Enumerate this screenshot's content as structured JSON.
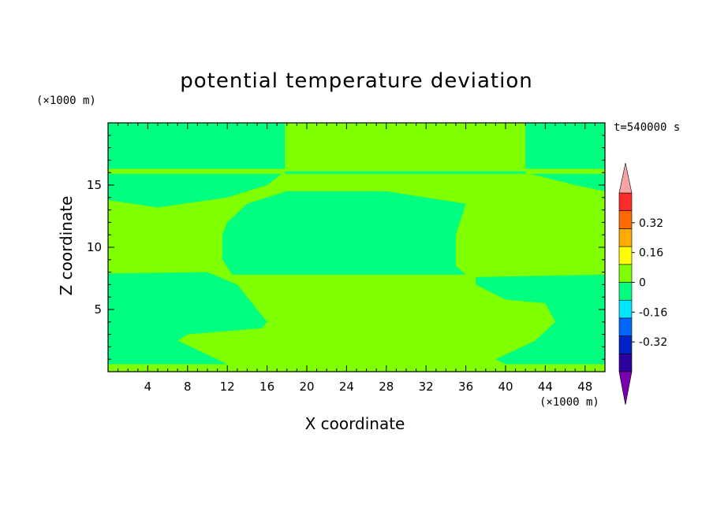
{
  "chart_data": {
    "type": "heatmap",
    "title": "potential temperature deviation",
    "xlabel": "X coordinate",
    "ylabel": "Z coordinate",
    "x_unit": "(×1000 m)",
    "y_unit": "(×1000 m)",
    "time_label": "t=540000 s",
    "xlim": [
      0,
      50
    ],
    "ylim": [
      0,
      20
    ],
    "x_ticks": [
      4,
      8,
      12,
      16,
      20,
      24,
      28,
      32,
      36,
      40,
      44,
      48
    ],
    "y_ticks": [
      5,
      10,
      15
    ],
    "colorbar": {
      "levels": [
        -0.48,
        -0.4,
        -0.32,
        -0.24,
        -0.16,
        -0.08,
        0,
        0.08,
        0.16,
        0.24,
        0.32,
        0.4,
        0.48
      ],
      "tick_labels": [
        "0.32",
        "0.16",
        "0",
        "-0.16",
        "-0.32"
      ],
      "tick_values": [
        0.32,
        0.16,
        0,
        -0.16,
        -0.32
      ],
      "colors": [
        "#7b00ad",
        "#2d00a0",
        "#0022c8",
        "#0066ff",
        "#00e6ff",
        "#00ff80",
        "#80ff00",
        "#ffff00",
        "#ffaa00",
        "#ff6a00",
        "#ff2a2a",
        "#f5a3a3"
      ],
      "extend": "both"
    },
    "regions": [
      {
        "level_range": [
          0,
          0.08
        ],
        "color": "#80ff00",
        "description": "background"
      },
      {
        "level_range": [
          -0.08,
          0
        ],
        "color": "#00ff80",
        "polygon": [
          [
            0,
            20
          ],
          [
            17.8,
            20
          ],
          [
            17.8,
            16.3
          ],
          [
            0,
            16.3
          ]
        ]
      },
      {
        "level_range": [
          -0.08,
          0
        ],
        "color": "#00ff80",
        "polygon": [
          [
            42,
            20
          ],
          [
            50,
            20
          ],
          [
            50,
            16.3
          ],
          [
            42,
            16.3
          ]
        ]
      },
      {
        "level_range": [
          -0.08,
          0
        ],
        "color": "#00ff80",
        "polygon": [
          [
            17.8,
            16.1
          ],
          [
            42,
            16.1
          ],
          [
            42,
            15.9
          ],
          [
            17.8,
            15.9
          ]
        ]
      },
      {
        "level_range": [
          -0.08,
          0
        ],
        "color": "#00ff80",
        "polygon": [
          [
            0,
            15.9
          ],
          [
            17.5,
            15.9
          ],
          [
            16,
            15
          ],
          [
            12,
            14
          ],
          [
            5,
            13.2
          ],
          [
            0,
            13.8
          ]
        ]
      },
      {
        "level_range": [
          -0.08,
          0
        ],
        "color": "#00ff80",
        "polygon": [
          [
            42.5,
            15.9
          ],
          [
            50,
            15.9
          ],
          [
            50,
            14.5
          ],
          [
            47,
            15
          ],
          [
            44,
            15.6
          ]
        ]
      },
      {
        "level_range": [
          -0.08,
          0
        ],
        "color": "#00ff80",
        "polygon": [
          [
            12,
            12
          ],
          [
            14,
            13.5
          ],
          [
            18,
            14.5
          ],
          [
            28,
            14.5
          ],
          [
            36,
            13.5
          ],
          [
            35,
            11
          ],
          [
            35,
            8.5
          ],
          [
            36,
            7.8
          ],
          [
            12.5,
            7.8
          ],
          [
            11.5,
            9
          ],
          [
            11.5,
            11
          ]
        ]
      },
      {
        "level_range": [
          -0.08,
          0
        ],
        "color": "#00ff80",
        "polygon": [
          [
            0,
            7.9
          ],
          [
            10,
            8
          ],
          [
            13,
            7
          ],
          [
            16,
            4
          ],
          [
            15.5,
            3.5
          ],
          [
            8,
            3
          ],
          [
            7,
            2.5
          ],
          [
            12,
            0.6
          ],
          [
            0,
            0.6
          ]
        ]
      },
      {
        "level_range": [
          -0.08,
          0
        ],
        "color": "#00ff80",
        "polygon": [
          [
            37,
            7.6
          ],
          [
            50,
            7.8
          ],
          [
            50,
            0.6
          ],
          [
            40,
            0.6
          ],
          [
            39,
            1
          ],
          [
            43,
            2.5
          ],
          [
            45,
            4
          ],
          [
            44,
            5.5
          ],
          [
            40,
            5.8
          ],
          [
            37,
            7
          ]
        ]
      }
    ]
  }
}
